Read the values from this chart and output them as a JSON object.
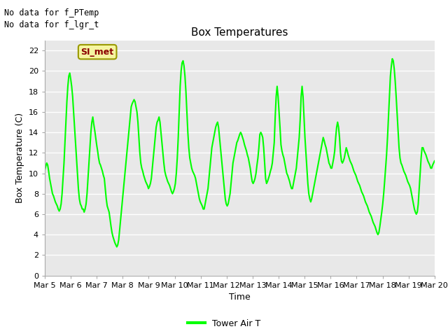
{
  "title": "Box Temperatures",
  "ylabel": "Box Temperature (C)",
  "xlabel": "Time",
  "no_data_text": [
    "No data for f_PTemp",
    "No data for f_lgr_t"
  ],
  "legend_label": "Tower Air T",
  "legend_color": "#00ff00",
  "line_color": "#00ff00",
  "line_width": 1.5,
  "bg_color": "#ffffff",
  "plot_bg_color": "#e8e8e8",
  "grid_color": "#ffffff",
  "ylim": [
    0,
    23
  ],
  "yticks": [
    0,
    2,
    4,
    6,
    8,
    10,
    12,
    14,
    16,
    18,
    20,
    22
  ],
  "xtick_labels": [
    "Mar 5",
    "Mar 6",
    "Mar 7",
    "Mar 8",
    "Mar 9",
    "Mar 10",
    "Mar 11",
    "Mar 12",
    "Mar 13",
    "Mar 14",
    "Mar 15",
    "Mar 16",
    "Mar 17",
    "Mar 18",
    "Mar 19",
    "Mar 20"
  ],
  "SI_met_label": "SI_met",
  "temp_data": [
    10.3,
    10.7,
    11.0,
    10.8,
    10.2,
    9.5,
    9.0,
    8.5,
    8.0,
    7.8,
    7.5,
    7.2,
    7.0,
    6.8,
    6.5,
    6.3,
    6.5,
    7.0,
    8.0,
    9.5,
    11.0,
    13.0,
    15.0,
    17.0,
    18.5,
    19.5,
    19.8,
    19.2,
    18.5,
    17.5,
    16.0,
    14.5,
    13.0,
    11.5,
    10.0,
    8.5,
    7.5,
    7.0,
    6.8,
    6.5,
    6.5,
    6.2,
    6.5,
    7.0,
    8.0,
    9.5,
    11.0,
    12.5,
    14.0,
    15.0,
    15.5,
    14.8,
    14.2,
    13.5,
    12.8,
    12.2,
    11.5,
    11.0,
    10.8,
    10.5,
    10.2,
    9.8,
    9.5,
    8.5,
    7.5,
    6.8,
    6.5,
    6.2,
    5.5,
    4.8,
    4.2,
    3.8,
    3.5,
    3.2,
    3.0,
    2.8,
    3.0,
    3.5,
    4.5,
    5.5,
    6.5,
    7.5,
    8.5,
    9.5,
    10.5,
    11.5,
    12.5,
    13.5,
    14.5,
    15.5,
    16.5,
    16.8,
    17.0,
    17.2,
    17.0,
    16.5,
    16.0,
    15.0,
    13.5,
    12.0,
    11.0,
    10.5,
    10.2,
    9.8,
    9.5,
    9.2,
    9.0,
    8.8,
    8.5,
    8.7,
    9.0,
    9.5,
    10.5,
    11.5,
    12.5,
    13.5,
    14.5,
    15.0,
    15.2,
    15.5,
    15.0,
    14.0,
    13.0,
    12.0,
    11.0,
    10.2,
    9.8,
    9.5,
    9.2,
    9.0,
    8.8,
    8.5,
    8.2,
    8.0,
    8.2,
    8.5,
    9.0,
    10.0,
    11.5,
    13.5,
    16.0,
    18.5,
    20.0,
    20.8,
    21.0,
    20.5,
    19.5,
    18.0,
    16.0,
    14.0,
    12.5,
    11.5,
    11.0,
    10.5,
    10.2,
    10.0,
    9.8,
    9.5,
    9.0,
    8.5,
    8.0,
    7.5,
    7.2,
    7.0,
    6.8,
    6.5,
    6.5,
    7.0,
    7.5,
    8.0,
    8.5,
    9.5,
    10.5,
    11.5,
    12.5,
    13.0,
    13.5,
    14.0,
    14.5,
    14.8,
    15.0,
    14.5,
    13.5,
    12.5,
    11.5,
    10.5,
    9.5,
    8.5,
    7.5,
    7.0,
    6.8,
    7.0,
    7.5,
    8.0,
    9.0,
    10.0,
    11.0,
    11.5,
    12.0,
    12.5,
    13.0,
    13.2,
    13.5,
    13.8,
    14.0,
    13.8,
    13.5,
    13.2,
    12.8,
    12.5,
    12.2,
    11.8,
    11.5,
    11.0,
    10.5,
    9.8,
    9.2,
    9.0,
    9.2,
    9.5,
    10.0,
    10.8,
    11.5,
    12.5,
    13.8,
    14.0,
    13.8,
    13.5,
    12.5,
    11.0,
    9.5,
    9.0,
    9.2,
    9.5,
    9.8,
    10.2,
    10.5,
    11.0,
    12.0,
    13.0,
    15.5,
    17.5,
    18.5,
    17.5,
    16.0,
    14.5,
    12.8,
    12.2,
    11.8,
    11.5,
    11.0,
    10.5,
    10.0,
    9.8,
    9.5,
    9.2,
    8.8,
    8.5,
    8.5,
    9.0,
    9.5,
    10.0,
    10.5,
    11.5,
    12.5,
    13.5,
    15.2,
    17.5,
    18.5,
    17.5,
    15.5,
    13.5,
    12.0,
    10.5,
    9.0,
    8.0,
    7.5,
    7.2,
    7.5,
    8.0,
    8.5,
    9.0,
    9.5,
    10.0,
    10.5,
    11.0,
    11.5,
    12.0,
    12.5,
    13.0,
    13.5,
    13.2,
    12.8,
    12.5,
    12.0,
    11.5,
    11.0,
    10.8,
    10.5,
    10.5,
    11.0,
    11.5,
    12.2,
    13.5,
    14.5,
    15.0,
    14.5,
    13.5,
    12.0,
    11.2,
    11.0,
    11.2,
    11.5,
    12.0,
    12.5,
    12.2,
    11.8,
    11.5,
    11.2,
    11.0,
    10.8,
    10.5,
    10.2,
    10.0,
    9.8,
    9.5,
    9.2,
    9.0,
    8.8,
    8.5,
    8.2,
    8.0,
    7.8,
    7.5,
    7.2,
    7.0,
    6.8,
    6.5,
    6.2,
    6.0,
    5.8,
    5.5,
    5.2,
    5.0,
    4.8,
    4.5,
    4.2,
    4.0,
    4.2,
    4.8,
    5.5,
    6.2,
    7.0,
    8.0,
    9.2,
    10.5,
    11.8,
    13.5,
    15.5,
    17.5,
    19.5,
    20.5,
    21.2,
    21.0,
    20.2,
    19.0,
    17.5,
    15.8,
    14.0,
    12.5,
    11.5,
    11.0,
    10.8,
    10.5,
    10.2,
    10.0,
    9.8,
    9.5,
    9.2,
    9.0,
    8.8,
    8.5,
    8.0,
    7.5,
    7.0,
    6.5,
    6.2,
    6.0,
    6.2,
    7.0,
    8.5,
    10.0,
    11.5,
    12.5,
    12.5,
    12.2,
    12.0,
    11.8,
    11.5,
    11.2,
    11.0,
    10.8,
    10.5,
    10.5,
    10.8,
    11.0,
    11.2
  ]
}
